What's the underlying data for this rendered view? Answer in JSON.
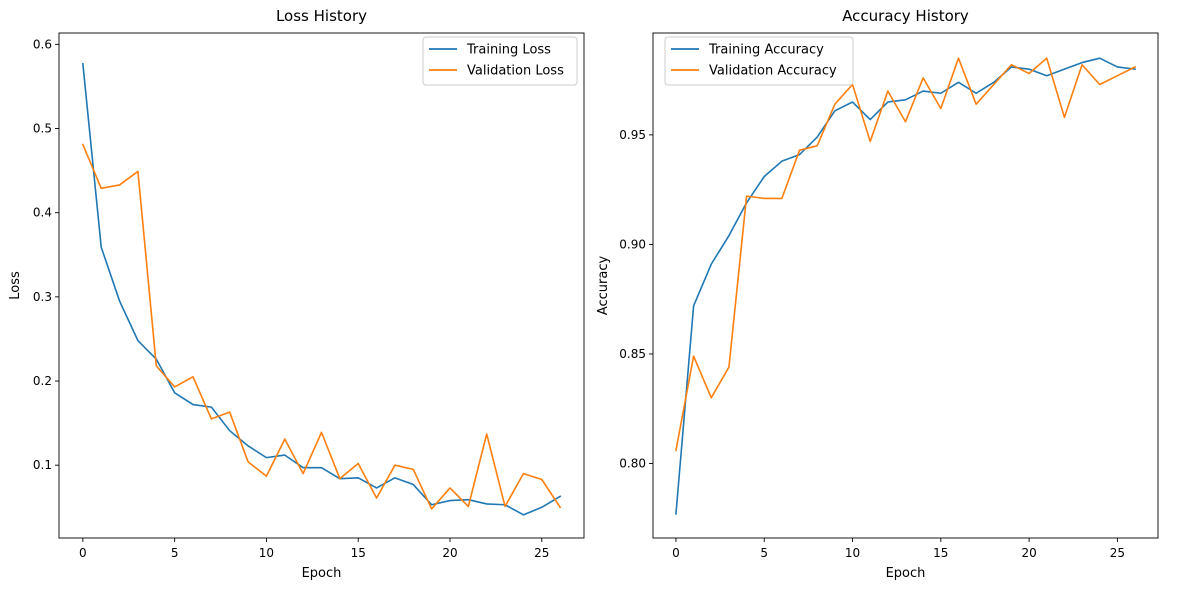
{
  "chart_data": [
    {
      "type": "line",
      "title": "Loss History",
      "xlabel": "Epoch",
      "ylabel": "Loss",
      "xlim": [
        -1.3,
        27.3
      ],
      "ylim": [
        0.0135,
        0.6135
      ],
      "xticks": [
        0,
        5,
        10,
        15,
        20,
        25
      ],
      "yticks": [
        0.1,
        0.2,
        0.3,
        0.4,
        0.5,
        0.6
      ],
      "xtick_labels": [
        "0",
        "5",
        "10",
        "15",
        "20",
        "25"
      ],
      "ytick_labels": [
        "0.1",
        "0.2",
        "0.3",
        "0.4",
        "0.5",
        "0.6"
      ],
      "grid": false,
      "legend": "upper right",
      "series": [
        {
          "name": "Training Loss",
          "color": "#1f77b4",
          "x": [
            0,
            1,
            2,
            3,
            4,
            5,
            6,
            7,
            8,
            9,
            10,
            11,
            12,
            13,
            14,
            15,
            16,
            17,
            18,
            19,
            20,
            21,
            22,
            23,
            24,
            25,
            26
          ],
          "values": [
            0.577,
            0.359,
            0.295,
            0.248,
            0.226,
            0.186,
            0.172,
            0.169,
            0.141,
            0.123,
            0.109,
            0.112,
            0.097,
            0.097,
            0.084,
            0.085,
            0.073,
            0.085,
            0.077,
            0.053,
            0.058,
            0.059,
            0.054,
            0.053,
            0.041,
            0.05,
            0.063
          ]
        },
        {
          "name": "Validation Loss",
          "color": "#ff7f0e",
          "x": [
            0,
            1,
            2,
            3,
            4,
            5,
            6,
            7,
            8,
            9,
            10,
            11,
            12,
            13,
            14,
            15,
            16,
            17,
            18,
            19,
            20,
            21,
            22,
            23,
            24,
            25,
            26
          ],
          "values": [
            0.481,
            0.429,
            0.433,
            0.449,
            0.218,
            0.193,
            0.205,
            0.155,
            0.163,
            0.104,
            0.087,
            0.131,
            0.09,
            0.139,
            0.084,
            0.102,
            0.061,
            0.1,
            0.095,
            0.048,
            0.073,
            0.051,
            0.137,
            0.051,
            0.09,
            0.083,
            0.05
          ]
        }
      ]
    },
    {
      "type": "line",
      "title": "Accuracy History",
      "xlabel": "Epoch",
      "ylabel": "Accuracy",
      "xlim": [
        -1.3,
        27.3
      ],
      "ylim": [
        0.766,
        0.9965
      ],
      "xticks": [
        0,
        5,
        10,
        15,
        20,
        25
      ],
      "yticks": [
        0.8,
        0.85,
        0.9,
        0.95
      ],
      "xtick_labels": [
        "0",
        "5",
        "10",
        "15",
        "20",
        "25"
      ],
      "ytick_labels": [
        "0.80",
        "0.85",
        "0.90",
        "0.95"
      ],
      "grid": false,
      "legend": "upper left",
      "series": [
        {
          "name": "Training Accuracy",
          "color": "#1f77b4",
          "x": [
            0,
            1,
            2,
            3,
            4,
            5,
            6,
            7,
            8,
            9,
            10,
            11,
            12,
            13,
            14,
            15,
            16,
            17,
            18,
            19,
            20,
            21,
            22,
            23,
            24,
            25,
            26
          ],
          "values": [
            0.777,
            0.872,
            0.891,
            0.904,
            0.919,
            0.931,
            0.938,
            0.941,
            0.949,
            0.961,
            0.965,
            0.957,
            0.965,
            0.966,
            0.97,
            0.969,
            0.974,
            0.969,
            0.974,
            0.981,
            0.98,
            0.977,
            0.98,
            0.983,
            0.985,
            0.981,
            0.98
          ]
        },
        {
          "name": "Validation Accuracy",
          "color": "#ff7f0e",
          "x": [
            0,
            1,
            2,
            3,
            4,
            5,
            6,
            7,
            8,
            9,
            10,
            11,
            12,
            13,
            14,
            15,
            16,
            17,
            18,
            19,
            20,
            21,
            22,
            23,
            24,
            25,
            26
          ],
          "values": [
            0.806,
            0.849,
            0.83,
            0.844,
            0.922,
            0.921,
            0.921,
            0.943,
            0.945,
            0.964,
            0.973,
            0.947,
            0.97,
            0.956,
            0.976,
            0.962,
            0.985,
            0.964,
            0.973,
            0.982,
            0.978,
            0.985,
            0.958,
            0.982,
            0.973,
            0.977,
            0.981
          ]
        }
      ]
    }
  ]
}
